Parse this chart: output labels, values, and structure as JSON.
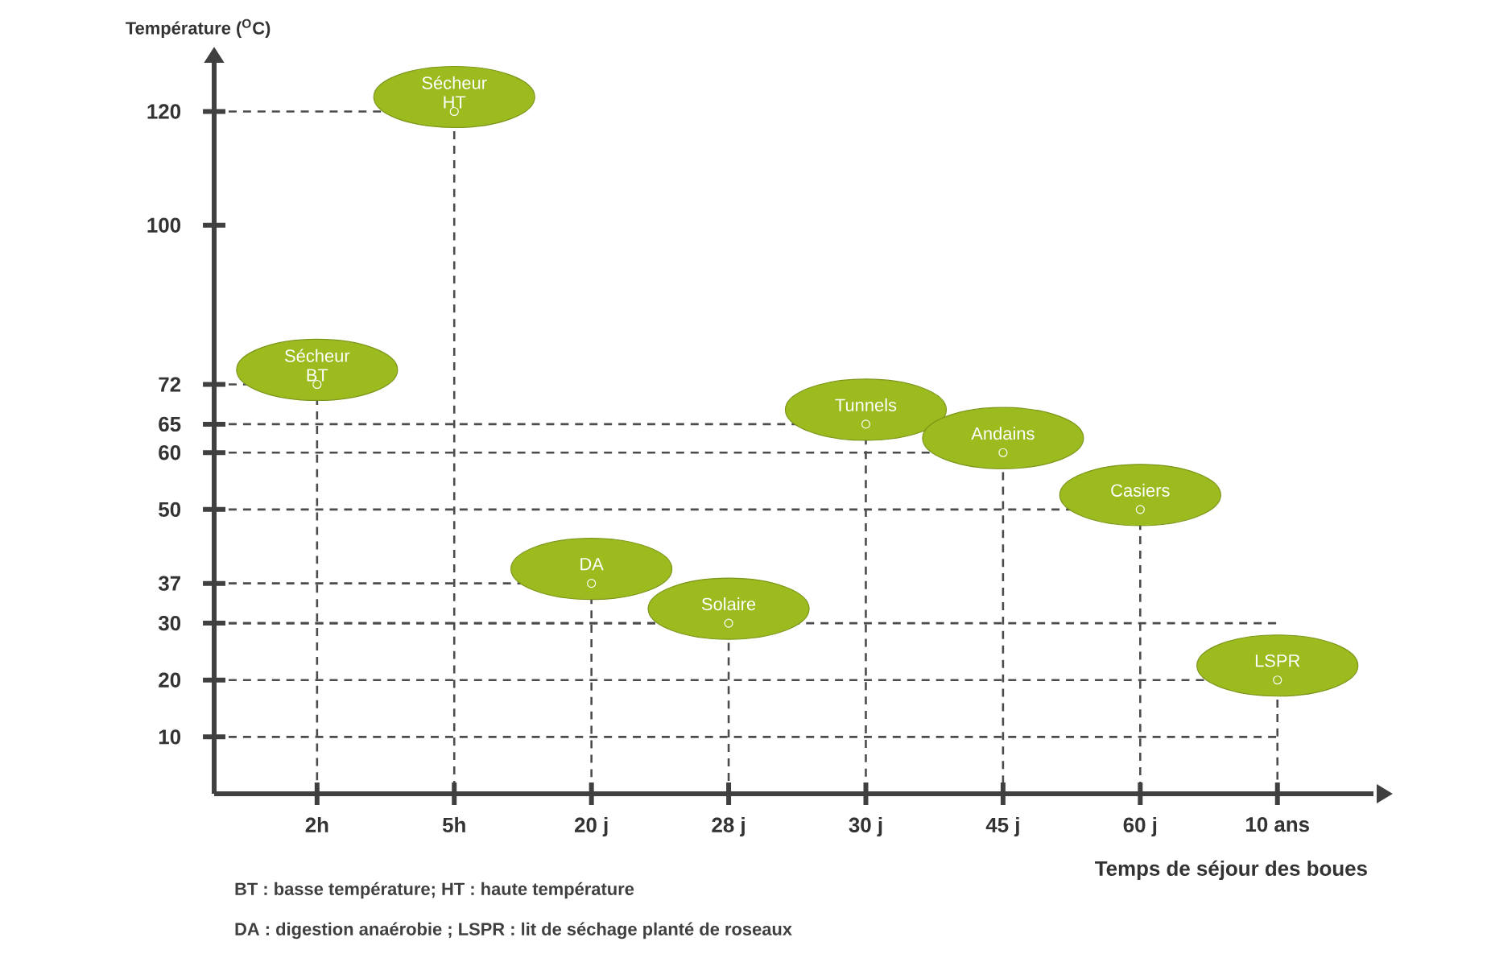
{
  "chart_data": {
    "type": "scatter",
    "xlabel": "Temps de séjour des boues",
    "ylabel": "Température ($^{O}$C)",
    "categories": [
      "2h",
      "5h",
      "20 j",
      "28 j",
      "30 j",
      "45 j",
      "60 j",
      "10 ans"
    ],
    "series": [
      {
        "name": "Sécheur BT",
        "color": "#9bbb1f",
        "values": [
          72,
          null,
          null,
          null,
          null,
          null,
          null,
          null
        ]
      },
      {
        "name": "Sécheur HT",
        "color": "#9bbb1f",
        "values": [
          null,
          120,
          null,
          null,
          null,
          null,
          null,
          null
        ]
      },
      {
        "name": "DA",
        "color": "#9bbb1f",
        "values": [
          null,
          null,
          37,
          null,
          null,
          null,
          null,
          null
        ]
      },
      {
        "name": "Solaire",
        "color": "#9bbb1f",
        "values": [
          null,
          null,
          null,
          30,
          null,
          null,
          null,
          null
        ]
      },
      {
        "name": "Tunnels",
        "color": "#9bbb1f",
        "values": [
          null,
          null,
          null,
          null,
          65,
          null,
          null,
          null
        ]
      },
      {
        "name": "Andains",
        "color": "#9bbb1f",
        "values": [
          null,
          null,
          null,
          null,
          null,
          60,
          null,
          null
        ]
      },
      {
        "name": "Casiers",
        "color": "#9bbb1f",
        "values": [
          null,
          null,
          null,
          null,
          null,
          null,
          50,
          null
        ]
      },
      {
        "name": "LSPR",
        "color": "#9bbb1f",
        "values": [
          null,
          null,
          null,
          null,
          null,
          null,
          null,
          20
        ]
      }
    ],
    "ylim": [
      0,
      128
    ],
    "yticks": [
      10,
      20,
      30,
      37,
      50,
      60,
      65,
      72,
      100,
      120
    ],
    "ref_lines": [
      {
        "axis": "y",
        "value": 10,
        "line_style": "dashed"
      },
      {
        "axis": "y",
        "value": 30,
        "line_style": "dashed"
      }
    ],
    "marker": "circle",
    "legend": false,
    "annotations": [
      "BT : basse température; HT : haute température",
      "DA : digestion anaérobie ; LSPR : lit de séchage planté de roseaux"
    ]
  }
}
